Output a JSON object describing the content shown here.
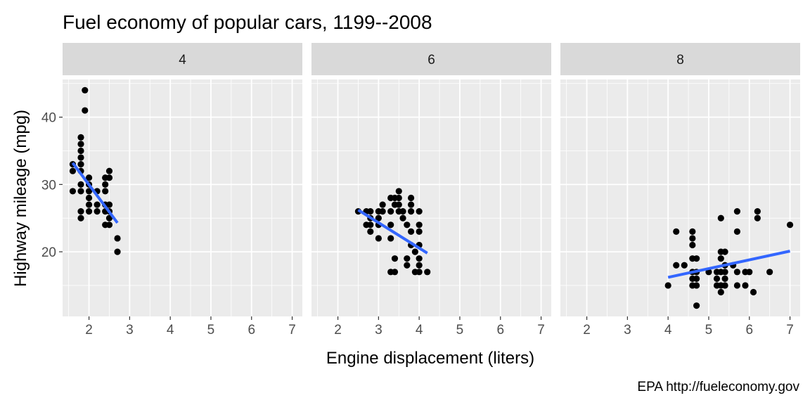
{
  "chart_data": {
    "type": "scatter",
    "title": "Fuel economy of popular cars, 1199--2008",
    "xlabel": "Engine displacement (liters)",
    "ylabel": "Highway mileage (mpg)",
    "caption": "EPA http://fueleconomy.gov",
    "xlim": [
      1.35,
      7.25
    ],
    "ylim": [
      10.4,
      45.6
    ],
    "x_ticks": [
      2,
      3,
      4,
      5,
      6,
      7
    ],
    "y_ticks": [
      20,
      30,
      40
    ],
    "grid": true,
    "colors": {
      "point": "#000000",
      "trend": "#3366ff",
      "panel": "#ebebeb",
      "strip": "#d9d9d9",
      "grid": "#ffffff"
    },
    "facets": [
      {
        "label": "4",
        "points": [
          [
            1.6,
            33
          ],
          [
            1.6,
            32
          ],
          [
            1.6,
            29
          ],
          [
            1.8,
            37
          ],
          [
            1.8,
            36
          ],
          [
            1.8,
            35
          ],
          [
            1.8,
            34
          ],
          [
            1.8,
            33
          ],
          [
            1.8,
            32
          ],
          [
            1.8,
            30
          ],
          [
            1.8,
            29
          ],
          [
            1.8,
            26
          ],
          [
            1.8,
            25
          ],
          [
            1.9,
            44
          ],
          [
            1.9,
            41
          ],
          [
            2.0,
            31
          ],
          [
            2.0,
            30
          ],
          [
            2.0,
            29
          ],
          [
            2.0,
            28
          ],
          [
            2.0,
            27
          ],
          [
            2.0,
            26
          ],
          [
            2.2,
            29
          ],
          [
            2.2,
            27
          ],
          [
            2.2,
            26
          ],
          [
            2.4,
            31
          ],
          [
            2.4,
            30
          ],
          [
            2.4,
            29
          ],
          [
            2.4,
            27
          ],
          [
            2.4,
            26
          ],
          [
            2.4,
            24
          ],
          [
            2.5,
            32
          ],
          [
            2.5,
            31
          ],
          [
            2.5,
            27
          ],
          [
            2.5,
            26
          ],
          [
            2.5,
            25
          ],
          [
            2.5,
            24
          ],
          [
            2.7,
            22
          ],
          [
            2.7,
            20
          ]
        ],
        "trend": [
          [
            1.6,
            33.2
          ],
          [
            2.7,
            24.3
          ]
        ]
      },
      {
        "label": "6",
        "points": [
          [
            2.5,
            26
          ],
          [
            2.7,
            26
          ],
          [
            2.7,
            24
          ],
          [
            2.8,
            26
          ],
          [
            2.8,
            25
          ],
          [
            2.8,
            24
          ],
          [
            2.8,
            23
          ],
          [
            3.0,
            26
          ],
          [
            3.0,
            25
          ],
          [
            3.0,
            24
          ],
          [
            3.0,
            22
          ],
          [
            3.1,
            27
          ],
          [
            3.1,
            26
          ],
          [
            3.3,
            28
          ],
          [
            3.3,
            26
          ],
          [
            3.3,
            24
          ],
          [
            3.3,
            22
          ],
          [
            3.3,
            17
          ],
          [
            3.4,
            28
          ],
          [
            3.4,
            27
          ],
          [
            3.4,
            19
          ],
          [
            3.4,
            17
          ],
          [
            3.5,
            29
          ],
          [
            3.5,
            28
          ],
          [
            3.5,
            27
          ],
          [
            3.5,
            26
          ],
          [
            3.6,
            26
          ],
          [
            3.6,
            25
          ],
          [
            3.7,
            24
          ],
          [
            3.7,
            19
          ],
          [
            3.7,
            18
          ],
          [
            3.8,
            28
          ],
          [
            3.8,
            27
          ],
          [
            3.8,
            26
          ],
          [
            3.8,
            23
          ],
          [
            3.8,
            21
          ],
          [
            3.9,
            20
          ],
          [
            3.9,
            17
          ],
          [
            4.0,
            26
          ],
          [
            4.0,
            24
          ],
          [
            4.0,
            23
          ],
          [
            4.0,
            21
          ],
          [
            4.0,
            19
          ],
          [
            4.0,
            18
          ],
          [
            4.0,
            17
          ],
          [
            4.2,
            17
          ]
        ],
        "trend": [
          [
            2.5,
            26.2
          ],
          [
            4.2,
            19.8
          ]
        ]
      },
      {
        "label": "8",
        "points": [
          [
            4.0,
            15
          ],
          [
            4.2,
            23
          ],
          [
            4.2,
            18
          ],
          [
            4.4,
            18
          ],
          [
            4.6,
            23
          ],
          [
            4.6,
            22
          ],
          [
            4.6,
            21
          ],
          [
            4.6,
            19
          ],
          [
            4.6,
            17
          ],
          [
            4.6,
            16
          ],
          [
            4.6,
            15
          ],
          [
            4.7,
            19
          ],
          [
            4.7,
            17
          ],
          [
            4.7,
            16
          ],
          [
            4.7,
            15
          ],
          [
            4.7,
            12
          ],
          [
            5.0,
            17
          ],
          [
            5.2,
            17
          ],
          [
            5.2,
            16
          ],
          [
            5.2,
            15
          ],
          [
            5.3,
            25
          ],
          [
            5.3,
            20
          ],
          [
            5.3,
            19
          ],
          [
            5.3,
            17
          ],
          [
            5.3,
            15
          ],
          [
            5.3,
            14
          ],
          [
            5.4,
            20
          ],
          [
            5.4,
            18
          ],
          [
            5.4,
            17
          ],
          [
            5.4,
            16
          ],
          [
            5.4,
            15
          ],
          [
            5.6,
            18
          ],
          [
            5.7,
            26
          ],
          [
            5.7,
            23
          ],
          [
            5.7,
            17
          ],
          [
            5.7,
            15
          ],
          [
            5.9,
            17
          ],
          [
            5.9,
            15
          ],
          [
            6.0,
            17
          ],
          [
            6.1,
            14
          ],
          [
            6.2,
            26
          ],
          [
            6.2,
            25
          ],
          [
            6.5,
            17
          ],
          [
            7.0,
            24
          ]
        ],
        "trend": [
          [
            4.0,
            16.2
          ],
          [
            7.0,
            20.1
          ]
        ]
      }
    ]
  }
}
